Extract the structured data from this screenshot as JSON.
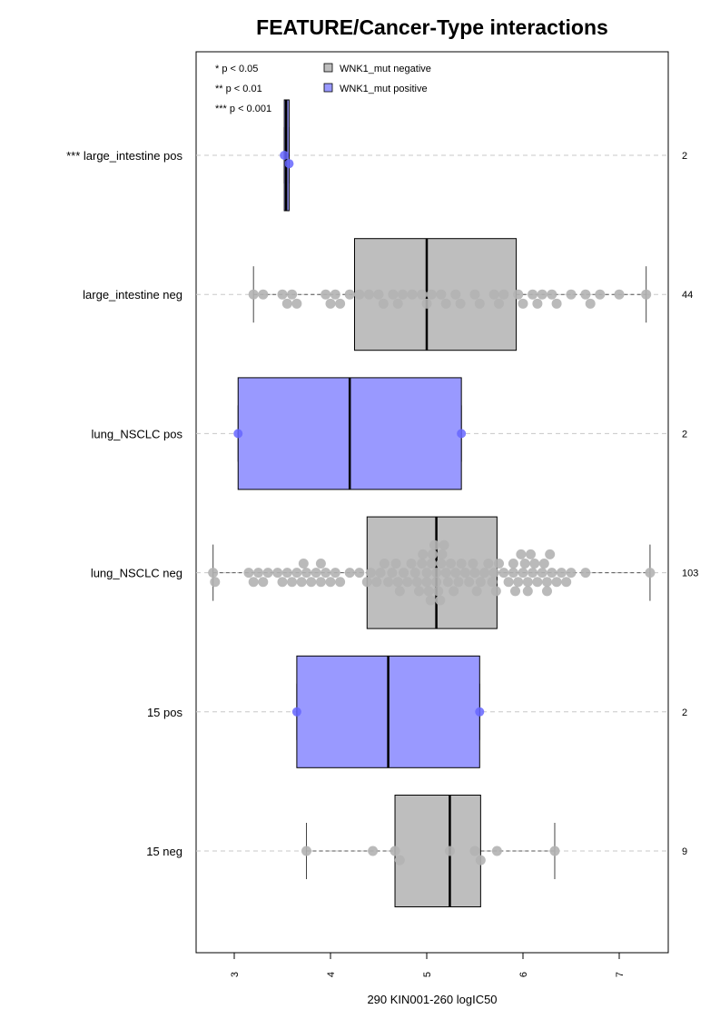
{
  "chart_data": {
    "type": "box",
    "title": "FEATURE/Cancer-Type interactions",
    "xlabel": "290 KIN001-260 logIC50",
    "ylabel": "",
    "xlim": [
      2.6,
      7.5
    ],
    "x_ticks": [
      "3",
      "4",
      "5",
      "6",
      "7"
    ],
    "grid": "horizontal dashed lines through each box",
    "legend": {
      "placement": "top-left",
      "significance": [
        "* p < 0.05",
        "** p < 0.01",
        "*** p < 0.001"
      ],
      "entries": [
        {
          "name": "WNK1_mut negative",
          "color": "#bebebe"
        },
        {
          "name": "WNK1_mut positive",
          "color": "#9999ff"
        }
      ]
    },
    "colors": {
      "negative": "#bebebe",
      "positive": "#9999ff",
      "point_negative": "#b3b3b3",
      "point_positive": "#6666ff"
    },
    "groups": [
      {
        "label": "*** large_intestine pos",
        "n": "2",
        "status": "positive",
        "q1": 3.52,
        "median": 3.54,
        "q3": 3.57,
        "whisker_low": 3.52,
        "whisker_high": 3.57,
        "points": [
          3.52,
          3.57
        ]
      },
      {
        "label": "large_intestine neg",
        "n": "44",
        "status": "negative",
        "q1": 4.25,
        "median": 5.0,
        "q3": 5.93,
        "whisker_low": 3.2,
        "whisker_high": 7.28,
        "points": [
          3.2,
          3.3,
          3.5,
          3.55,
          3.6,
          3.65,
          3.95,
          4.0,
          4.05,
          4.1,
          4.2,
          4.3,
          4.4,
          4.5,
          4.55,
          4.65,
          4.7,
          4.75,
          4.85,
          4.95,
          5.0,
          5.05,
          5.15,
          5.2,
          5.3,
          5.35,
          5.5,
          5.55,
          5.7,
          5.75,
          5.8,
          5.95,
          6.0,
          6.1,
          6.15,
          6.2,
          6.3,
          6.35,
          6.5,
          6.65,
          6.7,
          6.8,
          7.0,
          7.28
        ]
      },
      {
        "label": "lung_NSCLC pos",
        "n": "2",
        "status": "positive",
        "q1": 3.04,
        "median": 4.2,
        "q3": 5.36,
        "whisker_low": 3.04,
        "whisker_high": 5.36,
        "points": [
          3.04,
          5.36
        ]
      },
      {
        "label": "lung_NSCLC neg",
        "n": "103",
        "status": "negative",
        "q1": 4.38,
        "median": 5.1,
        "q3": 5.73,
        "whisker_low": 2.78,
        "whisker_high": 7.32,
        "points": [
          2.78,
          2.8,
          3.15,
          3.2,
          3.25,
          3.3,
          3.35,
          3.45,
          3.5,
          3.55,
          3.6,
          3.65,
          3.7,
          3.72,
          3.75,
          3.8,
          3.85,
          3.9,
          3.95,
          4.0,
          4.05,
          4.1,
          4.3,
          4.38,
          4.42,
          4.48,
          4.52,
          4.56,
          4.6,
          4.64,
          4.68,
          4.72,
          4.76,
          4.8,
          4.84,
          4.88,
          4.9,
          4.92,
          4.96,
          5.0,
          5.02,
          5.04,
          5.06,
          5.08,
          5.1,
          5.12,
          5.14,
          5.16,
          5.18,
          5.2,
          5.22,
          5.25,
          5.28,
          5.3,
          5.33,
          5.36,
          5.4,
          5.44,
          5.48,
          5.52,
          5.56,
          5.6,
          5.64,
          5.68,
          5.72,
          5.75,
          5.8,
          5.85,
          5.9,
          5.92,
          5.95,
          5.98,
          6.0,
          6.02,
          6.05,
          6.08,
          6.1,
          6.12,
          6.15,
          6.2,
          6.22,
          6.25,
          6.28,
          6.3,
          6.35,
          6.4,
          6.45,
          6.5,
          6.65,
          7.32,
          3.9,
          4.2,
          4.7,
          5.0,
          5.1,
          5.5,
          5.7,
          5.9,
          6.05,
          6.25,
          4.95,
          5.05,
          5.15
        ]
      },
      {
        "label": "15 pos",
        "n": "2",
        "status": "positive",
        "q1": 3.65,
        "median": 4.6,
        "q3": 5.55,
        "whisker_low": 3.65,
        "whisker_high": 5.55,
        "points": [
          3.65,
          5.55
        ]
      },
      {
        "label": "15 neg",
        "n": "9",
        "status": "negative",
        "q1": 4.67,
        "median": 5.24,
        "q3": 5.56,
        "whisker_low": 3.75,
        "whisker_high": 6.33,
        "points": [
          3.75,
          4.44,
          4.67,
          4.72,
          5.24,
          5.5,
          5.56,
          5.73,
          6.33
        ]
      }
    ]
  }
}
